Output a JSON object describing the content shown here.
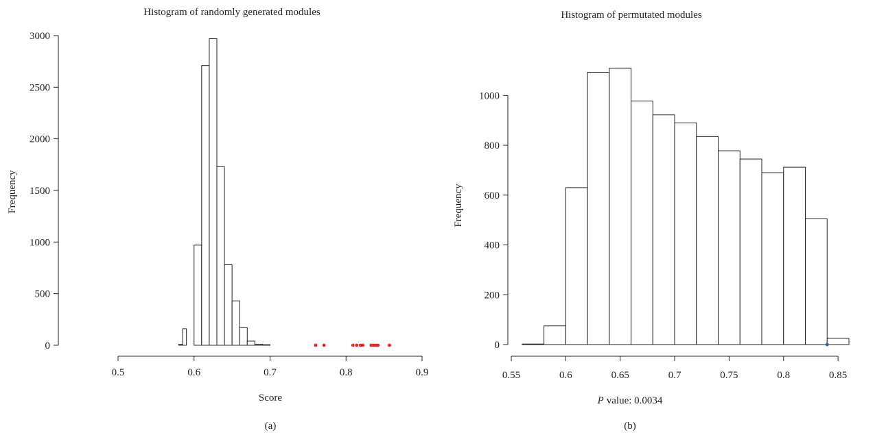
{
  "chart_data": [
    {
      "type": "bar",
      "title": "Histogram of randomly generated modules",
      "xlabel": "Score",
      "ylabel": "Frequency",
      "panel_label": "(a)",
      "xlim": [
        0.5,
        0.9
      ],
      "ylim": [
        0,
        3000
      ],
      "x_ticks": [
        "0.5",
        "0.6",
        "0.7",
        "0.8",
        "0.9"
      ],
      "y_ticks": [
        "0",
        "500",
        "1000",
        "1500",
        "2000",
        "2500",
        "3000"
      ],
      "bins": [
        {
          "x0": 0.58,
          "x1": 0.585,
          "count": 10
        },
        {
          "x0": 0.585,
          "x1": 0.59,
          "count": 160
        },
        {
          "x0": 0.59,
          "x1": 0.6,
          "count": 0
        },
        {
          "x0": 0.6,
          "x1": 0.61,
          "count": 970
        },
        {
          "x0": 0.61,
          "x1": 0.62,
          "count": 2710
        },
        {
          "x0": 0.62,
          "x1": 0.63,
          "count": 2970
        },
        {
          "x0": 0.63,
          "x1": 0.64,
          "count": 1730
        },
        {
          "x0": 0.64,
          "x1": 0.65,
          "count": 780
        },
        {
          "x0": 0.65,
          "x1": 0.66,
          "count": 430
        },
        {
          "x0": 0.66,
          "x1": 0.67,
          "count": 170
        },
        {
          "x0": 0.67,
          "x1": 0.68,
          "count": 40
        },
        {
          "x0": 0.68,
          "x1": 0.69,
          "count": 10
        },
        {
          "x0": 0.69,
          "x1": 0.7,
          "count": 3
        }
      ],
      "markers": {
        "color": "#e8262b",
        "y": 0,
        "x": [
          0.76,
          0.771,
          0.809,
          0.814,
          0.819,
          0.822,
          0.833,
          0.836,
          0.839,
          0.842,
          0.857
        ]
      }
    },
    {
      "type": "bar",
      "title": "Histogram of permutated modules",
      "xlabel": "value: 0.0034",
      "xlabel_prefix": "P",
      "ylabel": "Frequency",
      "panel_label": "(b)",
      "xlim": [
        0.55,
        0.86
      ],
      "ylim": [
        0,
        1100
      ],
      "x_ticks": [
        "0.55",
        "0.6",
        "0.65",
        "0.7",
        "0.75",
        "0.8",
        "0.85"
      ],
      "y_ticks": [
        "0",
        "200",
        "400",
        "600",
        "800",
        "1000"
      ],
      "bins": [
        {
          "x0": 0.56,
          "x1": 0.58,
          "count": 2
        },
        {
          "x0": 0.58,
          "x1": 0.6,
          "count": 75
        },
        {
          "x0": 0.6,
          "x1": 0.62,
          "count": 630
        },
        {
          "x0": 0.62,
          "x1": 0.64,
          "count": 1093
        },
        {
          "x0": 0.64,
          "x1": 0.66,
          "count": 1110
        },
        {
          "x0": 0.66,
          "x1": 0.68,
          "count": 978
        },
        {
          "x0": 0.68,
          "x1": 0.7,
          "count": 922
        },
        {
          "x0": 0.7,
          "x1": 0.72,
          "count": 890
        },
        {
          "x0": 0.72,
          "x1": 0.74,
          "count": 835
        },
        {
          "x0": 0.74,
          "x1": 0.76,
          "count": 778
        },
        {
          "x0": 0.76,
          "x1": 0.78,
          "count": 745
        },
        {
          "x0": 0.78,
          "x1": 0.8,
          "count": 690
        },
        {
          "x0": 0.8,
          "x1": 0.82,
          "count": 712
        },
        {
          "x0": 0.82,
          "x1": 0.84,
          "count": 505
        },
        {
          "x0": 0.84,
          "x1": 0.86,
          "count": 25
        }
      ],
      "markers": {
        "color": "#2e5ea8",
        "y": 0,
        "x": [
          0.84
        ]
      }
    }
  ]
}
